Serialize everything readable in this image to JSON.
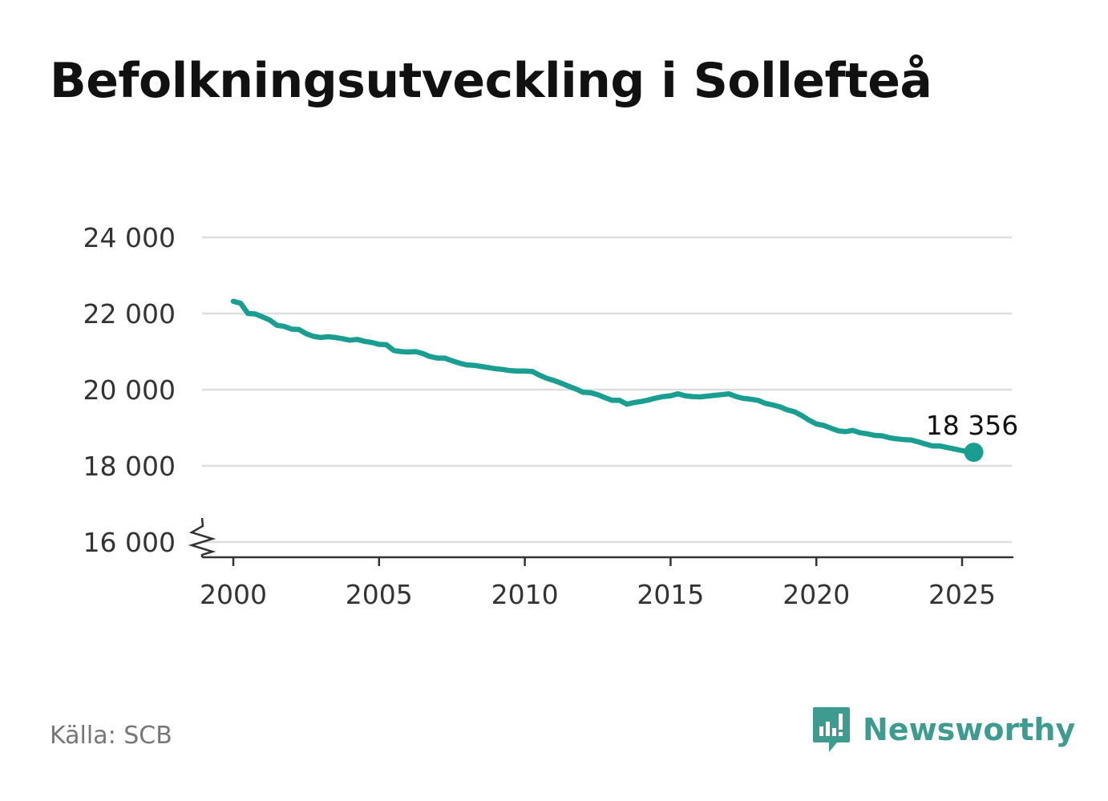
{
  "title": "Befolkningsutveckling i Sollefteå",
  "source": "Källa: SCB",
  "brand": {
    "name": "Newsworthy",
    "icon": "newsworthy-logo-icon",
    "color": "#3d9c8f"
  },
  "chart_data": {
    "type": "line",
    "title": "Befolkningsutveckling i Sollefteå",
    "xlabel": "",
    "ylabel": "",
    "xlim": [
      1999,
      2026.6
    ],
    "ylim": [
      16000,
      24000
    ],
    "axis_break": true,
    "grid": true,
    "x_ticks": [
      2000,
      2005,
      2010,
      2015,
      2020,
      2025
    ],
    "x_tick_labels": [
      "2000",
      "2005",
      "2010",
      "2015",
      "2020",
      "2025"
    ],
    "y_ticks": [
      16000,
      18000,
      20000,
      22000,
      24000
    ],
    "y_tick_labels": [
      "16 000",
      "18 000",
      "20 000",
      "22 000",
      "24 000"
    ],
    "line_color": "#1a9e92",
    "last_value_label": "18 356",
    "series": [
      {
        "x": [
          2000.0,
          2000.25,
          2000.5,
          2000.75,
          2001.0,
          2001.25,
          2001.5,
          2001.75,
          2002.0,
          2002.25,
          2002.5,
          2002.75,
          2003.0,
          2003.25,
          2003.5,
          2003.75,
          2004.0,
          2004.25,
          2004.5,
          2004.75,
          2005.0,
          2005.25,
          2005.5,
          2005.75,
          2006.0,
          2006.25,
          2006.5,
          2006.75,
          2007.0,
          2007.25,
          2007.5,
          2007.75,
          2008.0,
          2008.25,
          2008.5,
          2008.75,
          2009.0,
          2009.25,
          2009.5,
          2009.75,
          2010.0,
          2010.25,
          2010.5,
          2010.75,
          2011.0,
          2011.25,
          2011.5,
          2011.75,
          2012.0,
          2012.25,
          2012.5,
          2012.75,
          2013.0,
          2013.25,
          2013.5,
          2013.75,
          2014.0,
          2014.25,
          2014.5,
          2014.75,
          2015.0,
          2015.25,
          2015.5,
          2015.75,
          2016.0,
          2016.25,
          2016.5,
          2016.75,
          2017.0,
          2017.25,
          2017.5,
          2017.75,
          2018.0,
          2018.25,
          2018.5,
          2018.75,
          2019.0,
          2019.25,
          2019.5,
          2019.75,
          2020.0,
          2020.25,
          2020.5,
          2020.75,
          2021.0,
          2021.25,
          2021.5,
          2021.75,
          2022.0,
          2022.25,
          2022.5,
          2022.75,
          2023.0,
          2023.25,
          2023.5,
          2023.75,
          2024.0,
          2024.25,
          2024.5,
          2024.75,
          2025.0,
          2025.25,
          2025.4
        ],
        "y": [
          22320,
          22270,
          22000,
          21990,
          21910,
          21830,
          21690,
          21660,
          21590,
          21580,
          21470,
          21400,
          21370,
          21390,
          21370,
          21340,
          21300,
          21320,
          21270,
          21240,
          21190,
          21180,
          21030,
          21000,
          20990,
          21000,
          20950,
          20870,
          20830,
          20830,
          20760,
          20700,
          20650,
          20640,
          20610,
          20580,
          20550,
          20530,
          20500,
          20490,
          20490,
          20480,
          20380,
          20300,
          20240,
          20170,
          20090,
          20020,
          19930,
          19920,
          19870,
          19790,
          19720,
          19720,
          19620,
          19660,
          19690,
          19730,
          19780,
          19820,
          19840,
          19890,
          19840,
          19820,
          19810,
          19830,
          19850,
          19870,
          19890,
          19820,
          19770,
          19750,
          19720,
          19640,
          19600,
          19550,
          19470,
          19420,
          19320,
          19200,
          19100,
          19060,
          18990,
          18920,
          18900,
          18930,
          18870,
          18840,
          18800,
          18790,
          18740,
          18710,
          18690,
          18680,
          18630,
          18570,
          18520,
          18520,
          18480,
          18440,
          18400,
          18370,
          18356
        ]
      }
    ]
  }
}
